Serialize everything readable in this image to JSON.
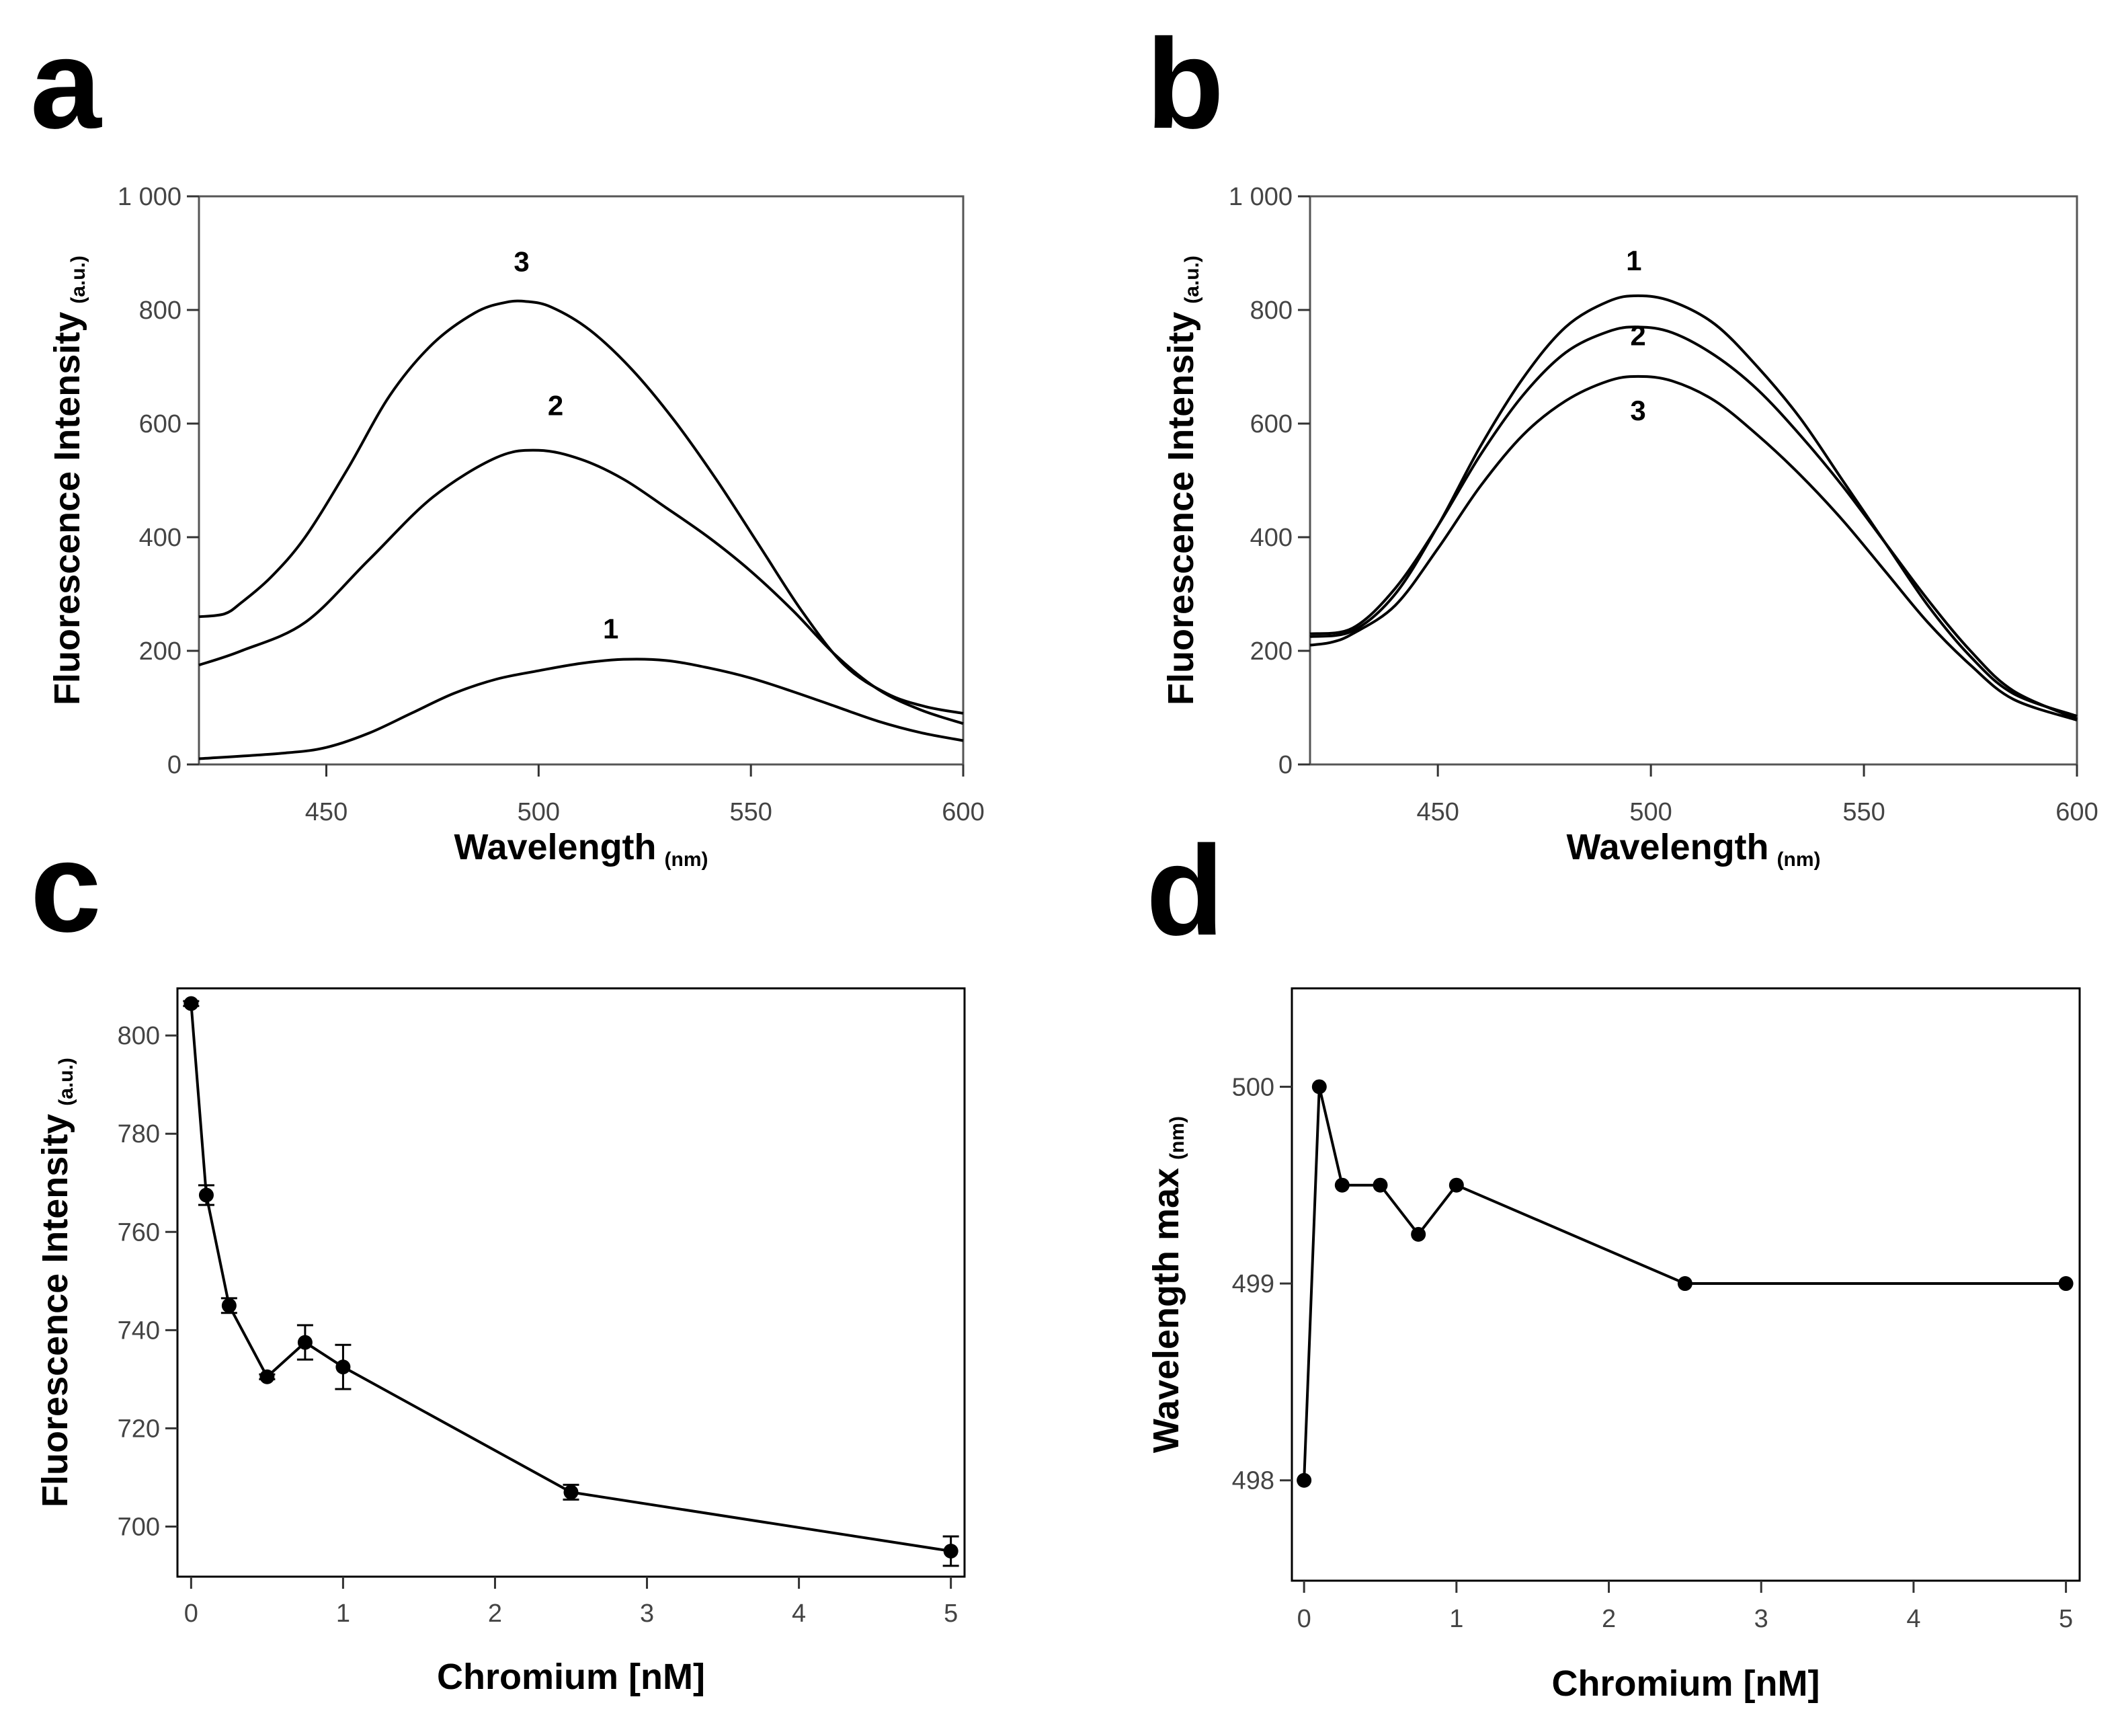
{
  "chart_data": [
    {
      "id": "a",
      "panel_label": "a",
      "type": "line",
      "xlabel": "Wavelength",
      "xlabel_unit": "(nm)",
      "ylabel": "Fluorescence Intensity",
      "ylabel_unit": "(a.u.)",
      "xlim": [
        420,
        600
      ],
      "ylim": [
        0,
        1000
      ],
      "xticks": [
        {
          "v": 450,
          "label": "450"
        },
        {
          "v": 500,
          "label": "500"
        },
        {
          "v": 550,
          "label": "550"
        },
        {
          "v": 600,
          "label": "600"
        }
      ],
      "yticks": [
        {
          "v": 0,
          "label": "0"
        },
        {
          "v": 200,
          "label": "200"
        },
        {
          "v": 400,
          "label": "400"
        },
        {
          "v": 600,
          "label": "600"
        },
        {
          "v": 800,
          "label": "800"
        },
        {
          "v": 1000,
          "label": "1 000"
        }
      ],
      "series": [
        {
          "name": "1",
          "label_at": [
            517,
            222
          ],
          "x": [
            420,
            440,
            450,
            460,
            470,
            480,
            490,
            500,
            510,
            520,
            530,
            540,
            550,
            560,
            570,
            580,
            590,
            600
          ],
          "y": [
            10,
            20,
            30,
            55,
            90,
            125,
            150,
            165,
            178,
            185,
            183,
            170,
            152,
            128,
            102,
            76,
            56,
            42
          ]
        },
        {
          "name": "2",
          "label_at": [
            504,
            615
          ],
          "x": [
            420,
            430,
            445,
            460,
            475,
            490,
            500,
            510,
            520,
            530,
            540,
            550,
            560,
            570,
            580,
            590,
            600
          ],
          "y": [
            175,
            200,
            250,
            360,
            470,
            540,
            553,
            537,
            502,
            452,
            400,
            340,
            270,
            192,
            132,
            96,
            72
          ]
        },
        {
          "name": "3",
          "label_at": [
            496,
            868
          ],
          "x": [
            420,
            426,
            430,
            437,
            445,
            455,
            465,
            475,
            485,
            492,
            497,
            503,
            512,
            522,
            532,
            542,
            552,
            562,
            572,
            582,
            591,
            600
          ],
          "y": [
            260,
            265,
            285,
            330,
            400,
            520,
            650,
            740,
            795,
            813,
            815,
            805,
            765,
            695,
            605,
            500,
            385,
            270,
            175,
            125,
            102,
            90
          ]
        }
      ]
    },
    {
      "id": "b",
      "panel_label": "b",
      "type": "line",
      "xlabel": "Wavelength",
      "xlabel_unit": "(nm)",
      "ylabel": "Fluorescence Intensity",
      "ylabel_unit": "(a.u.)",
      "xlim": [
        420,
        600
      ],
      "ylim": [
        0,
        1000
      ],
      "xticks": [
        {
          "v": 450,
          "label": "450"
        },
        {
          "v": 500,
          "label": "500"
        },
        {
          "v": 550,
          "label": "550"
        },
        {
          "v": 600,
          "label": "600"
        }
      ],
      "yticks": [
        {
          "v": 0,
          "label": "0"
        },
        {
          "v": 200,
          "label": "200"
        },
        {
          "v": 400,
          "label": "400"
        },
        {
          "v": 600,
          "label": "600"
        },
        {
          "v": 800,
          "label": "800"
        },
        {
          "v": 1000,
          "label": "1 000"
        }
      ],
      "series": [
        {
          "name": "1",
          "label_at": [
            496,
            870
          ],
          "x": [
            420,
            430,
            440,
            450,
            460,
            470,
            480,
            490,
            497,
            505,
            515,
            525,
            535,
            545,
            555,
            565,
            575,
            585,
            600
          ],
          "y": [
            225,
            235,
            300,
            420,
            560,
            680,
            770,
            815,
            825,
            815,
            775,
            700,
            610,
            500,
            390,
            280,
            190,
            125,
            85
          ]
        },
        {
          "name": "2",
          "label_at": [
            497,
            738
          ],
          "x": [
            420,
            430,
            440,
            450,
            460,
            470,
            480,
            490,
            497,
            505,
            515,
            525,
            535,
            545,
            555,
            565,
            575,
            585,
            600
          ],
          "y": [
            230,
            240,
            310,
            420,
            545,
            650,
            725,
            762,
            770,
            760,
            720,
            660,
            580,
            490,
            390,
            290,
            200,
            130,
            80
          ]
        },
        {
          "name": "3",
          "label_at": [
            497,
            606
          ],
          "x": [
            420,
            425,
            430,
            440,
            450,
            460,
            470,
            480,
            490,
            497,
            505,
            515,
            525,
            535,
            545,
            555,
            565,
            575,
            585,
            600
          ],
          "y": [
            210,
            215,
            230,
            280,
            380,
            490,
            580,
            640,
            675,
            683,
            675,
            640,
            580,
            510,
            430,
            340,
            250,
            175,
            115,
            78
          ]
        }
      ]
    },
    {
      "id": "c",
      "panel_label": "c",
      "type": "line",
      "xlabel": "Chromium [nM]",
      "xlabel_unit": "",
      "ylabel": "Fluorescence Intensity",
      "ylabel_unit": "(a.u.)",
      "xlim": [
        -0.09,
        5.09
      ],
      "ylim": [
        689.8,
        809.6
      ],
      "xticks": [
        {
          "v": 0,
          "label": "0"
        },
        {
          "v": 1,
          "label": "1"
        },
        {
          "v": 2,
          "label": "2"
        },
        {
          "v": 3,
          "label": "3"
        },
        {
          "v": 4,
          "label": "4"
        },
        {
          "v": 5,
          "label": "5"
        }
      ],
      "yticks": [
        {
          "v": 700,
          "label": "700"
        },
        {
          "v": 720,
          "label": "720"
        },
        {
          "v": 740,
          "label": "740"
        },
        {
          "v": 760,
          "label": "760"
        },
        {
          "v": 780,
          "label": "780"
        },
        {
          "v": 800,
          "label": "800"
        }
      ],
      "series": [
        {
          "name": "intensity",
          "x": [
            0,
            0.1,
            0.25,
            0.5,
            0.75,
            1,
            2.5,
            5
          ],
          "y": [
            806.5,
            767.5,
            745,
            730.5,
            737.5,
            732.5,
            707,
            695
          ],
          "err": [
            0.5,
            2,
            1.5,
            0.5,
            3.5,
            4.5,
            1.5,
            3
          ]
        }
      ]
    },
    {
      "id": "d",
      "panel_label": "d",
      "type": "line",
      "xlabel": "Chromium [nM]",
      "xlabel_unit": "",
      "ylabel": "Wavelength max",
      "ylabel_unit": "(nm)",
      "xlim": [
        -0.08,
        5.09
      ],
      "ylim": [
        497.49,
        500.5
      ],
      "xticks": [
        {
          "v": 0,
          "label": "0"
        },
        {
          "v": 1,
          "label": "1"
        },
        {
          "v": 2,
          "label": "2"
        },
        {
          "v": 3,
          "label": "3"
        },
        {
          "v": 4,
          "label": "4"
        },
        {
          "v": 5,
          "label": "5"
        }
      ],
      "yticks": [
        {
          "v": 498,
          "label": "498"
        },
        {
          "v": 499,
          "label": "499"
        },
        {
          "v": 500,
          "label": "500"
        }
      ],
      "series": [
        {
          "name": "wavelength-max",
          "x": [
            0,
            0.1,
            0.25,
            0.5,
            0.75,
            1,
            2.5,
            5
          ],
          "y": [
            498,
            500,
            499.5,
            499.5,
            499.25,
            499.5,
            499,
            499
          ]
        }
      ]
    }
  ]
}
